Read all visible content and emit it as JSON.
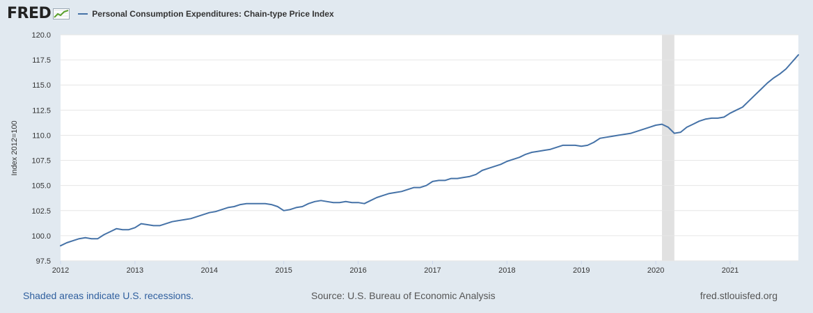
{
  "header": {
    "logo_text": "FRED",
    "series_name": "Personal Consumption Expenditures: Chain-type Price Index"
  },
  "footer": {
    "recession_note": "Shaded areas indicate U.S. recessions.",
    "source": "Source: U.S. Bureau of Economic Analysis",
    "site": "fred.stlouisfed.org"
  },
  "colors": {
    "line": "#4572a7",
    "recession": "#e1e1e1",
    "plot_background": "#ffffff",
    "page_background": "#e1e9f0",
    "grid": "#e6e6e6"
  },
  "chart_data": {
    "type": "line",
    "title": "Personal Consumption Expenditures: Chain-type Price Index",
    "ylabel": "Index 2012=100",
    "xlabel": "",
    "ylim": [
      97.5,
      120.0
    ],
    "xlim": [
      "2012-01",
      "2021-12"
    ],
    "y_ticks": [
      "97.5",
      "100.0",
      "102.5",
      "105.0",
      "107.5",
      "110.0",
      "112.5",
      "115.0",
      "117.5",
      "120.0"
    ],
    "x_ticks": [
      "2012",
      "2013",
      "2014",
      "2015",
      "2016",
      "2017",
      "2018",
      "2019",
      "2020",
      "2021"
    ],
    "grid": true,
    "legend": "top-left",
    "recessions": [
      {
        "start": "2020-02",
        "end": "2020-04"
      }
    ],
    "series": [
      {
        "name": "Personal Consumption Expenditures: Chain-type Price Index",
        "points": [
          [
            "2012-01",
            99.0
          ],
          [
            "2012-02",
            99.3
          ],
          [
            "2012-03",
            99.5
          ],
          [
            "2012-04",
            99.7
          ],
          [
            "2012-05",
            99.8
          ],
          [
            "2012-06",
            99.7
          ],
          [
            "2012-07",
            99.7
          ],
          [
            "2012-08",
            100.1
          ],
          [
            "2012-09",
            100.4
          ],
          [
            "2012-10",
            100.7
          ],
          [
            "2012-11",
            100.6
          ],
          [
            "2012-12",
            100.6
          ],
          [
            "2013-01",
            100.8
          ],
          [
            "2013-02",
            101.2
          ],
          [
            "2013-03",
            101.1
          ],
          [
            "2013-04",
            101.0
          ],
          [
            "2013-05",
            101.0
          ],
          [
            "2013-06",
            101.2
          ],
          [
            "2013-07",
            101.4
          ],
          [
            "2013-08",
            101.5
          ],
          [
            "2013-09",
            101.6
          ],
          [
            "2013-10",
            101.7
          ],
          [
            "2013-11",
            101.9
          ],
          [
            "2013-12",
            102.1
          ],
          [
            "2014-01",
            102.3
          ],
          [
            "2014-02",
            102.4
          ],
          [
            "2014-03",
            102.6
          ],
          [
            "2014-04",
            102.8
          ],
          [
            "2014-05",
            102.9
          ],
          [
            "2014-06",
            103.1
          ],
          [
            "2014-07",
            103.2
          ],
          [
            "2014-08",
            103.2
          ],
          [
            "2014-09",
            103.2
          ],
          [
            "2014-10",
            103.2
          ],
          [
            "2014-11",
            103.1
          ],
          [
            "2014-12",
            102.9
          ],
          [
            "2015-01",
            102.5
          ],
          [
            "2015-02",
            102.6
          ],
          [
            "2015-03",
            102.8
          ],
          [
            "2015-04",
            102.9
          ],
          [
            "2015-05",
            103.2
          ],
          [
            "2015-06",
            103.4
          ],
          [
            "2015-07",
            103.5
          ],
          [
            "2015-08",
            103.4
          ],
          [
            "2015-09",
            103.3
          ],
          [
            "2015-10",
            103.3
          ],
          [
            "2015-11",
            103.4
          ],
          [
            "2015-12",
            103.3
          ],
          [
            "2016-01",
            103.3
          ],
          [
            "2016-02",
            103.2
          ],
          [
            "2016-03",
            103.5
          ],
          [
            "2016-04",
            103.8
          ],
          [
            "2016-05",
            104.0
          ],
          [
            "2016-06",
            104.2
          ],
          [
            "2016-07",
            104.3
          ],
          [
            "2016-08",
            104.4
          ],
          [
            "2016-09",
            104.6
          ],
          [
            "2016-10",
            104.8
          ],
          [
            "2016-11",
            104.8
          ],
          [
            "2016-12",
            105.0
          ],
          [
            "2017-01",
            105.4
          ],
          [
            "2017-02",
            105.5
          ],
          [
            "2017-03",
            105.5
          ],
          [
            "2017-04",
            105.7
          ],
          [
            "2017-05",
            105.7
          ],
          [
            "2017-06",
            105.8
          ],
          [
            "2017-07",
            105.9
          ],
          [
            "2017-08",
            106.1
          ],
          [
            "2017-09",
            106.5
          ],
          [
            "2017-10",
            106.7
          ],
          [
            "2017-11",
            106.9
          ],
          [
            "2017-12",
            107.1
          ],
          [
            "2018-01",
            107.4
          ],
          [
            "2018-02",
            107.6
          ],
          [
            "2018-03",
            107.8
          ],
          [
            "2018-04",
            108.1
          ],
          [
            "2018-05",
            108.3
          ],
          [
            "2018-06",
            108.4
          ],
          [
            "2018-07",
            108.5
          ],
          [
            "2018-08",
            108.6
          ],
          [
            "2018-09",
            108.8
          ],
          [
            "2018-10",
            109.0
          ],
          [
            "2018-11",
            109.0
          ],
          [
            "2018-12",
            109.0
          ],
          [
            "2019-01",
            108.9
          ],
          [
            "2019-02",
            109.0
          ],
          [
            "2019-03",
            109.3
          ],
          [
            "2019-04",
            109.7
          ],
          [
            "2019-05",
            109.8
          ],
          [
            "2019-06",
            109.9
          ],
          [
            "2019-07",
            110.0
          ],
          [
            "2019-08",
            110.1
          ],
          [
            "2019-09",
            110.2
          ],
          [
            "2019-10",
            110.4
          ],
          [
            "2019-11",
            110.6
          ],
          [
            "2019-12",
            110.8
          ],
          [
            "2020-01",
            111.0
          ],
          [
            "2020-02",
            111.1
          ],
          [
            "2020-03",
            110.8
          ],
          [
            "2020-04",
            110.2
          ],
          [
            "2020-05",
            110.3
          ],
          [
            "2020-06",
            110.8
          ],
          [
            "2020-07",
            111.1
          ],
          [
            "2020-08",
            111.4
          ],
          [
            "2020-09",
            111.6
          ],
          [
            "2020-10",
            111.7
          ],
          [
            "2020-11",
            111.7
          ],
          [
            "2020-12",
            111.8
          ],
          [
            "2021-01",
            112.2
          ],
          [
            "2021-02",
            112.5
          ],
          [
            "2021-03",
            112.8
          ],
          [
            "2021-04",
            113.4
          ],
          [
            "2021-05",
            114.0
          ],
          [
            "2021-06",
            114.6
          ],
          [
            "2021-07",
            115.2
          ],
          [
            "2021-08",
            115.7
          ],
          [
            "2021-09",
            116.1
          ],
          [
            "2021-10",
            116.6
          ],
          [
            "2021-11",
            117.3
          ],
          [
            "2021-12",
            118.0
          ]
        ]
      }
    ]
  }
}
